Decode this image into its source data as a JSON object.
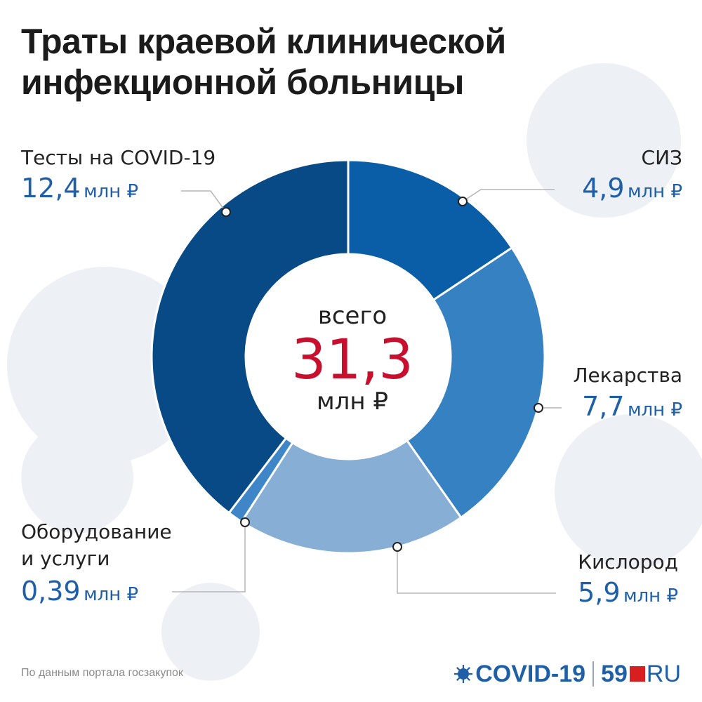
{
  "title_lines": [
    "Траты краевой клинической",
    "инфекционной больницы"
  ],
  "center": {
    "label": "всего",
    "total": "31,3",
    "unit": "млн ₽"
  },
  "source_text": "По данным портала госзакупок",
  "brand": {
    "covid": "COVID-19",
    "num": "59",
    "ru": "RU"
  },
  "labels": {
    "tests": {
      "name": "Тесты на COVID-19",
      "value": "12,4",
      "unit": "млн ₽"
    },
    "siz": {
      "name": "СИЗ",
      "value": "4,9",
      "unit": "млн ₽"
    },
    "drugs": {
      "name": "Лекарства",
      "value": "7,7",
      "unit": "млн ₽"
    },
    "oxygen": {
      "name": "Кислород",
      "value": "5,9",
      "unit": "млн ₽"
    },
    "equipment": {
      "name_line1": "Оборудование",
      "name_line2": "и услуги",
      "value": "0,39",
      "unit": "млн ₽"
    }
  },
  "chart_data": {
    "type": "pie",
    "variant": "donut",
    "title": "Траты краевой клинической инфекционной больницы",
    "unit": "млн ₽",
    "total": 31.3,
    "categories": [
      "СИЗ",
      "Лекарства",
      "Кислород",
      "Оборудование и услуги",
      "Тесты на COVID-19"
    ],
    "values": [
      4.9,
      7.7,
      5.9,
      0.39,
      12.4
    ],
    "colors": [
      "#0a5ea8",
      "#3681c2",
      "#87aed4",
      "#3f86c8",
      "#074a86"
    ]
  },
  "colors": {
    "accent_red": "#c8102e",
    "value_blue": "#1f5fa8"
  }
}
